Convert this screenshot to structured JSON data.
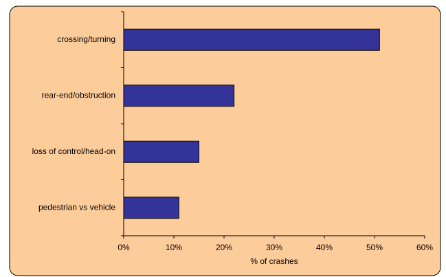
{
  "chart_data": {
    "type": "hbar",
    "categories": [
      "crossing/turning",
      "rear-end/obstruction",
      "loss of control/head-on",
      "pedestrian vs vehicle"
    ],
    "values": [
      51,
      22,
      15,
      11
    ],
    "color": "#333399",
    "xlabel": "% of crashes",
    "xlim": [
      0,
      60
    ],
    "xticks": [
      {
        "value": 0,
        "label": "0%"
      },
      {
        "value": 10,
        "label": "10%"
      },
      {
        "value": 20,
        "label": "20%"
      },
      {
        "value": 30,
        "label": "30%"
      },
      {
        "value": 40,
        "label": "40%"
      },
      {
        "value": 50,
        "label": "50%"
      },
      {
        "value": 60,
        "label": "60%"
      }
    ]
  }
}
